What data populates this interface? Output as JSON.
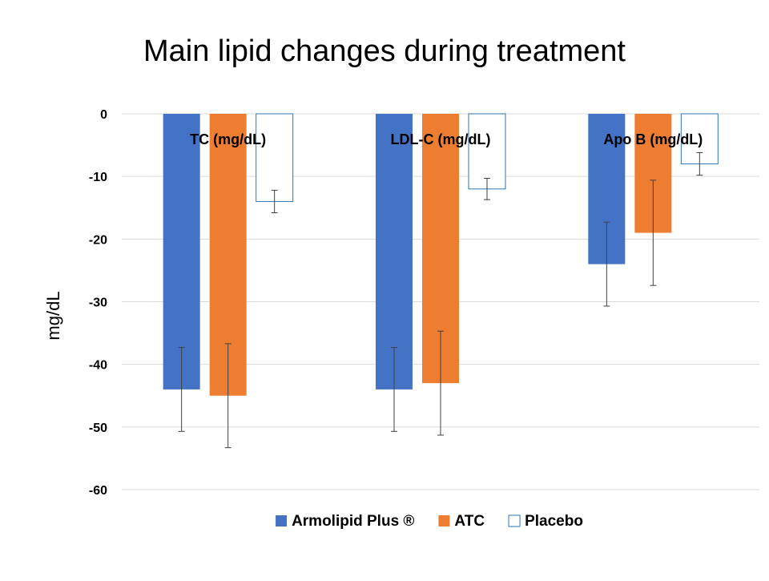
{
  "chart_data": {
    "type": "bar",
    "title": "Main lipid changes during treatment",
    "ylabel": "mg/dL",
    "xlabel": "",
    "ylim": [
      -60,
      0
    ],
    "yticks": [
      0,
      -10,
      -20,
      -30,
      -40,
      -50,
      -60
    ],
    "grid": true,
    "legend_position": "bottom",
    "categories": [
      "TC (mg/dL)",
      "LDL-C (mg/dL)",
      "Apo B (mg/dL)"
    ],
    "series": [
      {
        "name": "Armolipid Plus ®",
        "values": [
          -44,
          -44,
          -24
        ],
        "error": [
          6.7,
          6.7,
          6.7
        ],
        "color": "#4472c4",
        "style": "filled"
      },
      {
        "name": "ATC",
        "values": [
          -45,
          -43,
          -19
        ],
        "error": [
          8.3,
          8.3,
          8.4
        ],
        "color": "#ed7d31",
        "style": "filled"
      },
      {
        "name": "Placebo",
        "values": [
          -14,
          -12,
          -8
        ],
        "error": [
          1.8,
          1.7,
          1.8
        ],
        "color": "#2e75b6",
        "style": "outline"
      }
    ]
  }
}
